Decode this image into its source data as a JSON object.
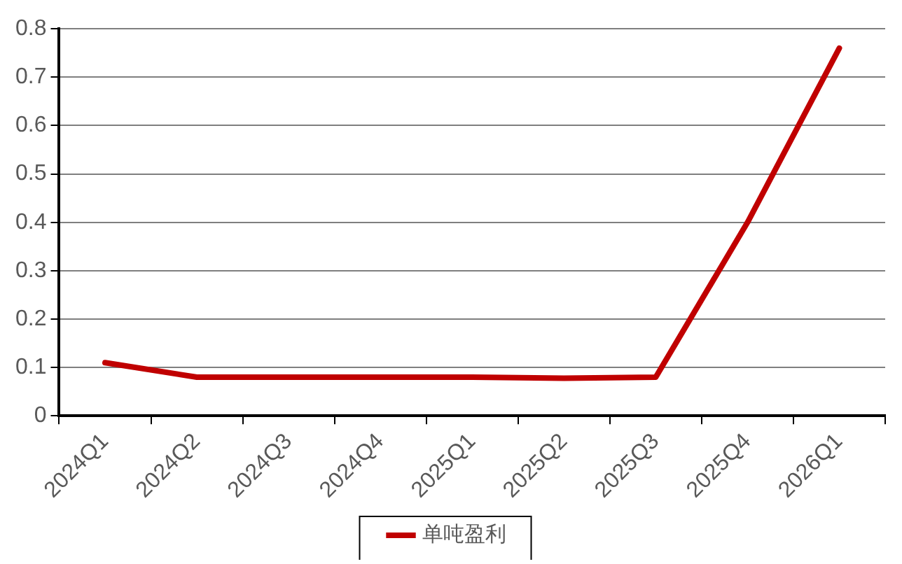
{
  "chart_data": {
    "type": "line",
    "categories": [
      "2024Q1",
      "2024Q2",
      "2024Q3",
      "2024Q4",
      "2025Q1",
      "2025Q2",
      "2025Q3",
      "2025Q4",
      "2026Q1"
    ],
    "series": [
      {
        "name": "单吨盈利",
        "color": "#c00000",
        "values": [
          0.11,
          0.08,
          0.08,
          0.08,
          0.08,
          0.078,
          0.08,
          0.4,
          0.76
        ]
      }
    ],
    "ylim": [
      0,
      0.8
    ],
    "yticks": [
      0,
      0.1,
      0.2,
      0.3,
      0.4,
      0.5,
      0.6,
      0.7,
      0.8
    ],
    "grid": "y",
    "legend": "bottom",
    "marker": "none",
    "line_style": "solid"
  }
}
